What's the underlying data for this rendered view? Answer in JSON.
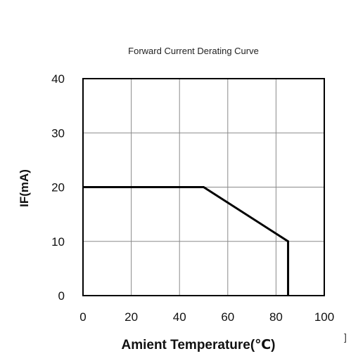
{
  "chart_data": {
    "type": "line",
    "title": "Forward Current Derating Curve",
    "xlabel": "Amient Temperature(℃)",
    "ylabel": "IF(mA)",
    "xlim": [
      0,
      100
    ],
    "ylim": [
      0,
      40
    ],
    "xticks": [
      0,
      20,
      40,
      60,
      80,
      100
    ],
    "yticks": [
      0,
      10,
      20,
      30,
      40
    ],
    "grid": true,
    "series": [
      {
        "x": [
          0,
          50,
          85,
          85
        ],
        "y": [
          20,
          20,
          10,
          0
        ]
      }
    ],
    "annotations": [
      "]"
    ]
  }
}
